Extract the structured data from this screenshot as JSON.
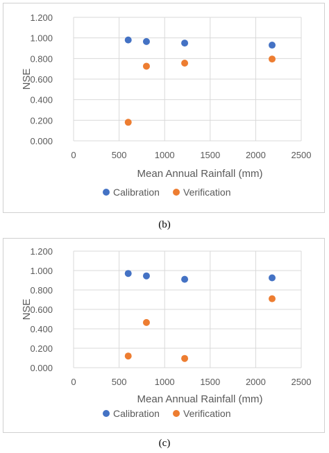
{
  "colors": {
    "calibration": "#4472C4",
    "verification": "#ED7D31",
    "grid": "#d9d9d9",
    "text": "#595959"
  },
  "chart_data": [
    {
      "type": "scatter",
      "caption": "(b)",
      "xlabel": "Mean Annual Rainfall (mm)",
      "ylabel": "NSE",
      "xlim": [
        0,
        2500
      ],
      "ylim": [
        0,
        1.2
      ],
      "xticks": [
        "0",
        "500",
        "1000",
        "1500",
        "2000",
        "2500"
      ],
      "yticks": [
        "0.000",
        "0.200",
        "0.400",
        "0.600",
        "0.800",
        "1.000",
        "1.200"
      ],
      "grid": true,
      "legend": "bottom",
      "series": [
        {
          "name": "Calibration",
          "x": [
            600,
            800,
            1220,
            2180
          ],
          "y": [
            0.98,
            0.965,
            0.95,
            0.93
          ]
        },
        {
          "name": "Verification",
          "x": [
            600,
            800,
            1220,
            2180
          ],
          "y": [
            0.18,
            0.725,
            0.755,
            0.795
          ]
        }
      ]
    },
    {
      "type": "scatter",
      "caption": "(c)",
      "xlabel": "Mean Annual Rainfall (mm)",
      "ylabel": "NSE",
      "xlim": [
        0,
        2500
      ],
      "ylim": [
        0,
        1.2
      ],
      "xticks": [
        "0",
        "500",
        "1000",
        "1500",
        "2000",
        "2500"
      ],
      "yticks": [
        "0.000",
        "0.200",
        "0.400",
        "0.600",
        "0.800",
        "1.000",
        "1.200"
      ],
      "grid": true,
      "legend": "bottom",
      "series": [
        {
          "name": "Calibration",
          "x": [
            600,
            800,
            1220,
            2180
          ],
          "y": [
            0.97,
            0.945,
            0.91,
            0.925
          ]
        },
        {
          "name": "Verification",
          "x": [
            600,
            800,
            1220,
            2180
          ],
          "y": [
            0.12,
            0.465,
            0.095,
            0.71
          ]
        }
      ]
    }
  ]
}
